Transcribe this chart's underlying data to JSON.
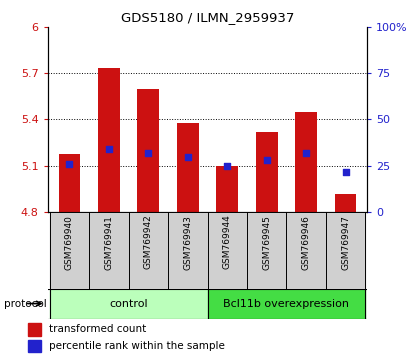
{
  "title": "GDS5180 / ILMN_2959937",
  "samples": [
    "GSM769940",
    "GSM769941",
    "GSM769942",
    "GSM769943",
    "GSM769944",
    "GSM769945",
    "GSM769946",
    "GSM769947"
  ],
  "transformed_counts": [
    5.18,
    5.73,
    5.6,
    5.38,
    5.1,
    5.32,
    5.45,
    4.92
  ],
  "percentile_ranks": [
    26,
    34,
    32,
    30,
    25,
    28,
    32,
    22
  ],
  "bar_bottom": 4.8,
  "ylim": [
    4.8,
    6.0
  ],
  "y2lim": [
    0,
    100
  ],
  "yticks": [
    4.8,
    5.1,
    5.4,
    5.7,
    6.0
  ],
  "y2ticks": [
    0,
    25,
    50,
    75,
    100
  ],
  "ytick_labels": [
    "4.8",
    "5.1",
    "5.4",
    "5.7",
    "6"
  ],
  "y2tick_labels": [
    "0",
    "25",
    "50",
    "75",
    "100%"
  ],
  "bar_color": "#cc1111",
  "blue_color": "#2222cc",
  "control_label": "control",
  "overexpression_label": "Bcl11b overexpression",
  "protocol_label": "protocol",
  "legend_bar_label": "transformed count",
  "legend_blue_label": "percentile rank within the sample",
  "control_color": "#bbffbb",
  "overexpression_color": "#44dd44",
  "bar_width": 0.55,
  "tick_color_left": "#cc1111",
  "tick_color_right": "#2222cc",
  "label_bg_color": "#d0d0d0",
  "n_control": 4
}
